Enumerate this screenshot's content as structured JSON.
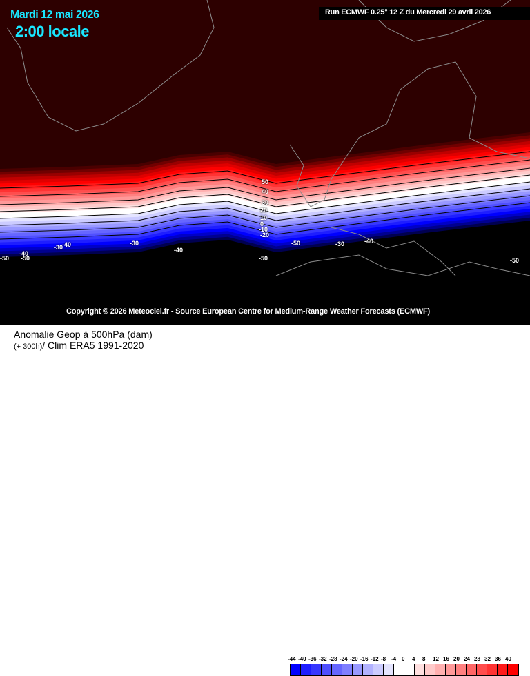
{
  "header": {
    "date": "Mardi 12 mai 2026",
    "time": "2:00 locale",
    "run": "Run ECMWF 0.25° 12 Z du Mercredi 29 avril 2026"
  },
  "map": {
    "copyright": "Copyright © 2026 Meteociel.fr - Source European Centre for Medium-Range Weather Forecasts (ECMWF)",
    "contour_labels": [
      "50",
      "40",
      "30",
      "20",
      "10",
      "0",
      "-10",
      "-20",
      "-50",
      "-30",
      "-40",
      "-30",
      "-40",
      "-40",
      "-50",
      "-50",
      "-30",
      "-50",
      "-40",
      "-50"
    ],
    "colors": {
      "background": "#2d0000",
      "land_outline": "#8c8c8c",
      "below": "#000000"
    }
  },
  "footer": {
    "title": "Anomalie Geop à 500hPa (dam)",
    "subtitle_prefix": "(+ 300h)",
    "subtitle": "/ Clim ERA5 1991-2020"
  },
  "legend": {
    "labels": [
      "-44",
      "-40",
      "-36",
      "-32",
      "-28",
      "-24",
      "-20",
      "-16",
      "-12",
      "-8",
      "-4",
      "0",
      "4",
      "8",
      "12",
      "16",
      "20",
      "24",
      "28",
      "32",
      "36",
      "40"
    ],
    "colors": [
      "#0000ff",
      "#1e1eff",
      "#3838ff",
      "#4f4fff",
      "#6666ff",
      "#7f7fff",
      "#9999ff",
      "#b2b2ff",
      "#ccccff",
      "#e5e5ff",
      "#ffffff",
      "#ffffff",
      "#ffe0e0",
      "#ffcaca",
      "#ffb0b0",
      "#ff9999",
      "#ff8080",
      "#ff6666",
      "#ff4d4d",
      "#ff3333",
      "#ff1a1a",
      "#ff0000"
    ]
  }
}
